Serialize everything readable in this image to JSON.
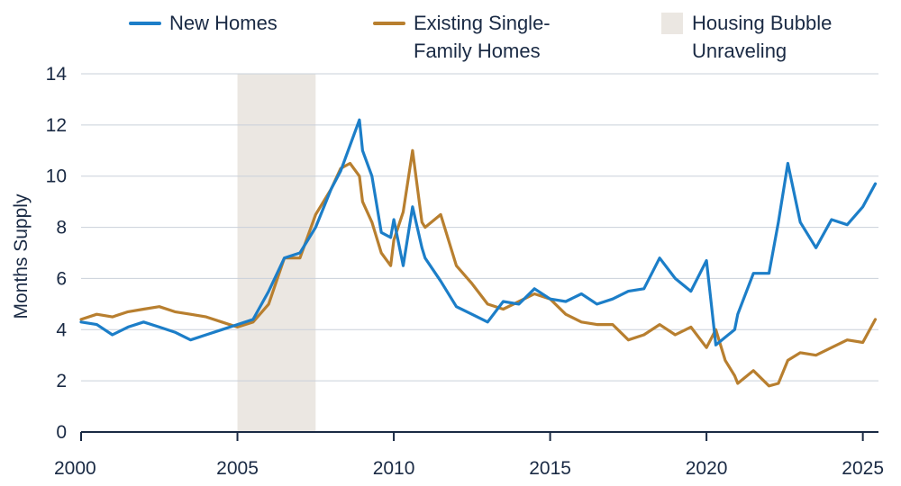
{
  "chart_data": {
    "type": "line",
    "title": "",
    "xlabel": "",
    "ylabel": "Months Supply",
    "xlim": [
      2000,
      2025.5
    ],
    "ylim": [
      0,
      14
    ],
    "x_ticks": [
      2000,
      2005,
      2010,
      2015,
      2020,
      2025
    ],
    "x_tick_labels": [
      "2000",
      "2005",
      "2010",
      "2015",
      "2020",
      "2025"
    ],
    "y_ticks": [
      0,
      2,
      4,
      6,
      8,
      10,
      12,
      14
    ],
    "y_tick_labels": [
      "0",
      "2",
      "4",
      "6",
      "8",
      "10",
      "12",
      "14"
    ],
    "grid": "horizontal",
    "legend_position": "top",
    "colors": {
      "new_homes": "#1c7ec8",
      "existing": "#b87f2f",
      "bubble": "#ebe7e2",
      "grid": "#c9d0da",
      "axis": "#1a2a44"
    },
    "shaded_regions": [
      {
        "name": "Housing Bubble Unraveling",
        "label_lines": [
          "Housing Bubble",
          "Unraveling"
        ],
        "x_start": 2005.0,
        "x_end": 2007.5
      }
    ],
    "series": [
      {
        "name": "New Homes",
        "label_lines": [
          "New Homes"
        ],
        "x": [
          2000.0,
          2000.5,
          2001.0,
          2001.5,
          2002.0,
          2002.5,
          2003.0,
          2003.5,
          2004.0,
          2004.5,
          2005.0,
          2005.5,
          2006.0,
          2006.5,
          2007.0,
          2007.5,
          2008.0,
          2008.3,
          2008.6,
          2008.9,
          2009.0,
          2009.3,
          2009.6,
          2009.9,
          2010.0,
          2010.3,
          2010.6,
          2010.9,
          2011.0,
          2011.5,
          2012.0,
          2012.5,
          2013.0,
          2013.5,
          2014.0,
          2014.5,
          2015.0,
          2015.5,
          2016.0,
          2016.5,
          2017.0,
          2017.5,
          2018.0,
          2018.5,
          2019.0,
          2019.5,
          2020.0,
          2020.3,
          2020.6,
          2020.9,
          2021.0,
          2021.5,
          2022.0,
          2022.3,
          2022.6,
          2023.0,
          2023.5,
          2024.0,
          2024.5,
          2025.0,
          2025.4
        ],
        "values": [
          4.3,
          4.2,
          3.8,
          4.1,
          4.3,
          4.1,
          3.9,
          3.6,
          3.8,
          4.0,
          4.2,
          4.4,
          5.5,
          6.8,
          7.0,
          8.0,
          9.5,
          10.2,
          11.2,
          12.2,
          11.0,
          10.0,
          7.8,
          7.6,
          8.3,
          6.5,
          8.8,
          7.2,
          6.8,
          5.9,
          4.9,
          4.6,
          4.3,
          5.1,
          5.0,
          5.6,
          5.2,
          5.1,
          5.4,
          5.0,
          5.2,
          5.5,
          5.6,
          6.8,
          6.0,
          5.5,
          6.7,
          3.4,
          3.7,
          4.0,
          4.6,
          6.2,
          6.2,
          8.2,
          10.5,
          8.2,
          7.2,
          8.3,
          8.1,
          8.8,
          9.7
        ]
      },
      {
        "name": "Existing Single-Family Homes",
        "label_lines": [
          "Existing Single-",
          "Family Homes"
        ],
        "x": [
          2000.0,
          2000.5,
          2001.0,
          2001.5,
          2002.0,
          2002.5,
          2003.0,
          2003.5,
          2004.0,
          2004.5,
          2005.0,
          2005.5,
          2006.0,
          2006.5,
          2007.0,
          2007.5,
          2008.0,
          2008.3,
          2008.6,
          2008.9,
          2009.0,
          2009.3,
          2009.6,
          2009.9,
          2010.0,
          2010.3,
          2010.6,
          2010.9,
          2011.0,
          2011.5,
          2012.0,
          2012.5,
          2013.0,
          2013.5,
          2014.0,
          2014.5,
          2015.0,
          2015.5,
          2016.0,
          2016.5,
          2017.0,
          2017.5,
          2018.0,
          2018.5,
          2019.0,
          2019.5,
          2020.0,
          2020.3,
          2020.6,
          2020.9,
          2021.0,
          2021.5,
          2022.0,
          2022.3,
          2022.6,
          2023.0,
          2023.5,
          2024.0,
          2024.5,
          2025.0,
          2025.4
        ],
        "values": [
          4.4,
          4.6,
          4.5,
          4.7,
          4.8,
          4.9,
          4.7,
          4.6,
          4.5,
          4.3,
          4.1,
          4.3,
          5.0,
          6.8,
          6.8,
          8.5,
          9.5,
          10.3,
          10.5,
          10.0,
          9.0,
          8.2,
          7.0,
          6.5,
          7.5,
          8.6,
          11.0,
          8.2,
          8.0,
          8.5,
          6.5,
          5.8,
          5.0,
          4.8,
          5.1,
          5.4,
          5.2,
          4.6,
          4.3,
          4.2,
          4.2,
          3.6,
          3.8,
          4.2,
          3.8,
          4.1,
          3.3,
          4.0,
          2.8,
          2.2,
          1.9,
          2.4,
          1.8,
          1.9,
          2.8,
          3.1,
          3.0,
          3.3,
          3.6,
          3.5,
          4.4
        ]
      }
    ]
  }
}
